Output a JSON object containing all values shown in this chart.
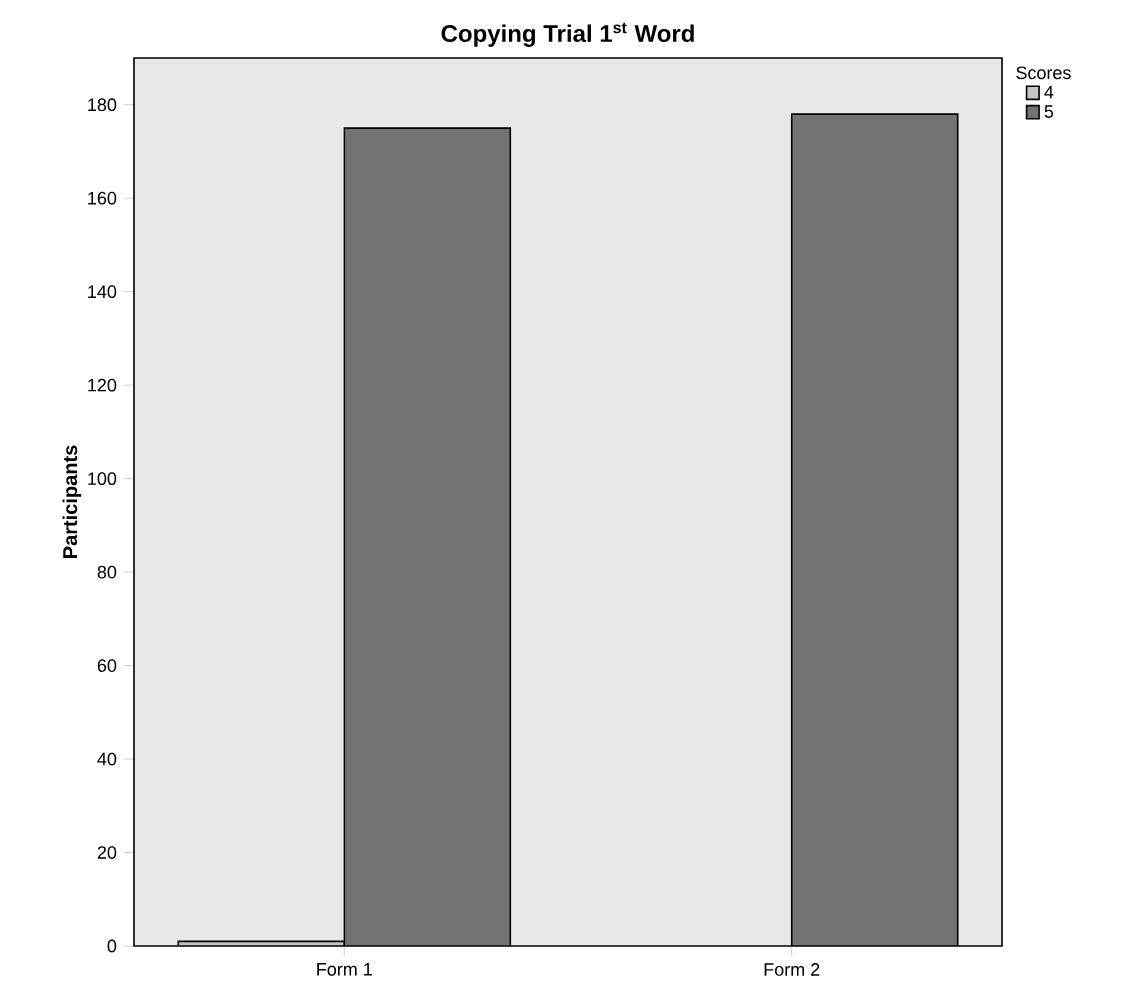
{
  "chart_data": {
    "type": "bar",
    "title": "Copying Trial 1$^{st}$ Word",
    "ylabel": "Participants",
    "legend_title": "Scores",
    "categories": [
      "Form 1",
      "Form 2"
    ],
    "series": [
      {
        "name": "4",
        "color": "#c4c4c4",
        "values": [
          1,
          null
        ]
      },
      {
        "name": "5",
        "color": "#737373",
        "values": [
          175,
          178
        ]
      }
    ],
    "ylim": [
      0,
      190
    ],
    "yticks": [
      0,
      20,
      40,
      60,
      80,
      100,
      120,
      140,
      160,
      180
    ],
    "grid": false,
    "legend": "right"
  }
}
